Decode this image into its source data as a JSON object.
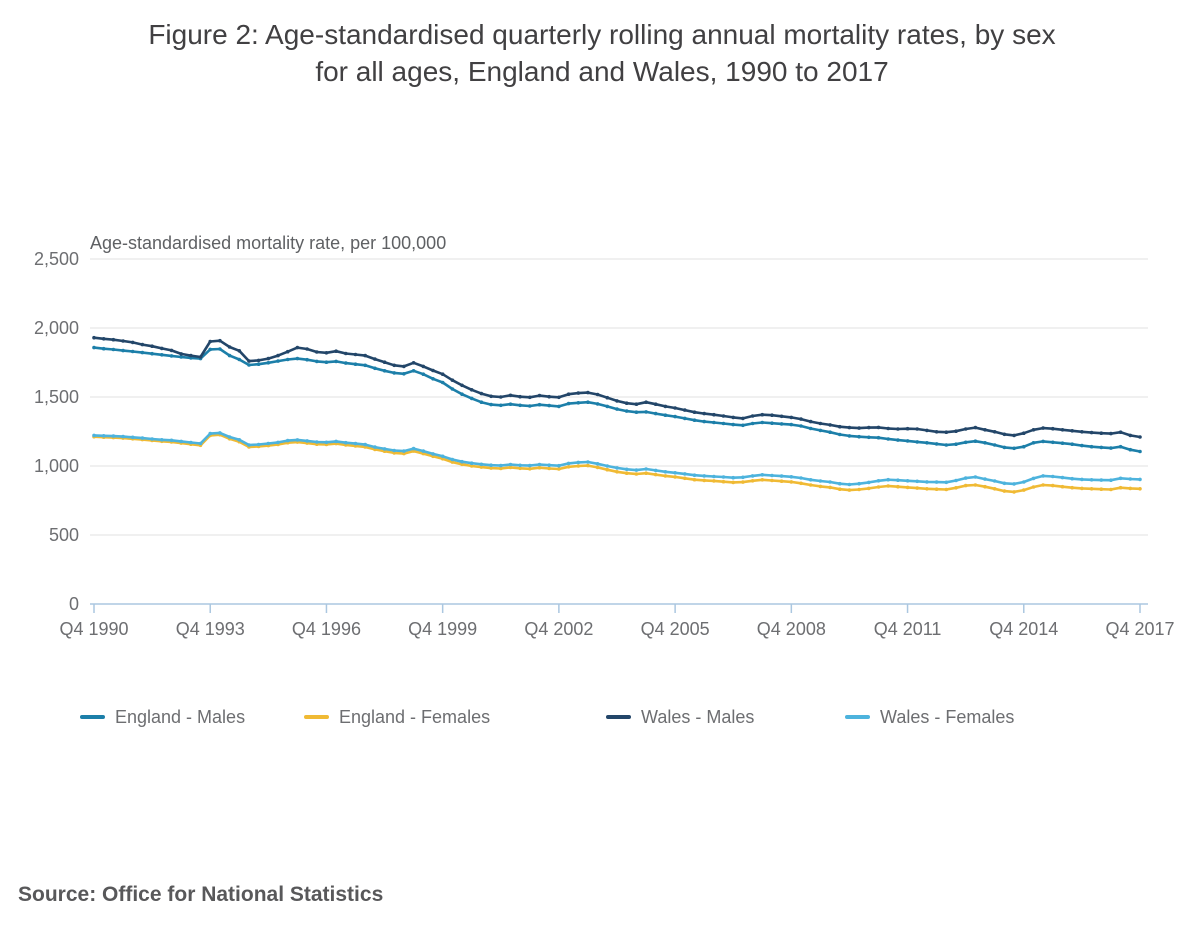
{
  "title": {
    "line1": "Figure 2: Age-standardised quarterly rolling annual mortality rates, by sex",
    "line2": "for all ages, England and Wales, 1990 to 2017"
  },
  "source": "Source: Office for National Statistics",
  "chart_data": {
    "type": "line",
    "title": "Figure 2: Age-standardised quarterly rolling annual mortality rates, by sex for all ages, England and Wales, 1990 to 2017",
    "ylabel": "Age-standardised mortality rate, per 100,000",
    "xlabel": "",
    "x_unit": "quarterly rolling annual periods, Q4 1990 to Q4 2017",
    "x_tick_labels": [
      "Q4 1990",
      "Q4 1993",
      "Q4 1996",
      "Q4 1999",
      "Q4 2002",
      "Q4 2005",
      "Q4 2008",
      "Q4 2011",
      "Q4 2014",
      "Q4 2017"
    ],
    "x_tick_every_n_points": 12,
    "y_ticks": [
      0,
      500,
      1000,
      1500,
      2000,
      2500
    ],
    "y_tick_labels": [
      "0",
      "500",
      "1,000",
      "1,500",
      "2,000",
      "2,500"
    ],
    "ylim": [
      0,
      2500
    ],
    "grid": true,
    "legend_position": "bottom",
    "axis_color": "#abc7e0",
    "grid_color": "#e0e0e0",
    "series": [
      {
        "name": "England - Males",
        "color": "#1c7fa9",
        "values": [
          1858,
          1850,
          1844,
          1836,
          1830,
          1822,
          1814,
          1806,
          1798,
          1790,
          1783,
          1778,
          1845,
          1848,
          1800,
          1772,
          1732,
          1738,
          1748,
          1760,
          1772,
          1778,
          1770,
          1758,
          1752,
          1758,
          1746,
          1738,
          1730,
          1708,
          1690,
          1675,
          1668,
          1690,
          1665,
          1632,
          1605,
          1558,
          1520,
          1490,
          1462,
          1445,
          1440,
          1448,
          1440,
          1435,
          1444,
          1438,
          1432,
          1452,
          1458,
          1462,
          1450,
          1432,
          1412,
          1398,
          1390,
          1392,
          1380,
          1368,
          1358,
          1345,
          1332,
          1322,
          1315,
          1308,
          1300,
          1295,
          1308,
          1315,
          1310,
          1305,
          1300,
          1290,
          1272,
          1258,
          1245,
          1228,
          1218,
          1212,
          1208,
          1205,
          1196,
          1188,
          1182,
          1175,
          1168,
          1160,
          1152,
          1158,
          1172,
          1180,
          1168,
          1152,
          1135,
          1128,
          1140,
          1168,
          1178,
          1172,
          1165,
          1158,
          1148,
          1140,
          1135,
          1130,
          1140,
          1118,
          1105
        ]
      },
      {
        "name": "England - Females",
        "color": "#f0ba34",
        "values": [
          1212,
          1209,
          1206,
          1202,
          1197,
          1191,
          1185,
          1179,
          1174,
          1166,
          1158,
          1150,
          1222,
          1227,
          1197,
          1176,
          1138,
          1141,
          1148,
          1156,
          1169,
          1173,
          1166,
          1158,
          1156,
          1162,
          1152,
          1145,
          1138,
          1120,
          1107,
          1095,
          1090,
          1108,
          1090,
          1070,
          1052,
          1028,
          1012,
          1000,
          992,
          985,
          982,
          990,
          983,
          980,
          988,
          982,
          978,
          994,
          1000,
          1003,
          990,
          973,
          958,
          948,
          942,
          948,
          938,
          928,
          921,
          911,
          901,
          896,
          892,
          886,
          881,
          883,
          893,
          900,
          895,
          890,
          885,
          875,
          862,
          852,
          845,
          832,
          825,
          830,
          838,
          848,
          855,
          850,
          845,
          840,
          835,
          832,
          830,
          842,
          858,
          862,
          850,
          835,
          818,
          812,
          825,
          848,
          862,
          858,
          850,
          843,
          838,
          835,
          832,
          830,
          843,
          838,
          835
        ]
      },
      {
        "name": "Wales - Males",
        "color": "#234669",
        "values": [
          1930,
          1922,
          1915,
          1906,
          1896,
          1880,
          1868,
          1852,
          1838,
          1812,
          1800,
          1790,
          1902,
          1908,
          1862,
          1835,
          1760,
          1765,
          1778,
          1800,
          1828,
          1858,
          1848,
          1826,
          1820,
          1832,
          1815,
          1808,
          1800,
          1775,
          1752,
          1730,
          1722,
          1748,
          1722,
          1692,
          1665,
          1622,
          1585,
          1552,
          1525,
          1505,
          1500,
          1512,
          1502,
          1498,
          1510,
          1502,
          1498,
          1520,
          1528,
          1532,
          1518,
          1495,
          1472,
          1455,
          1448,
          1462,
          1448,
          1432,
          1420,
          1405,
          1390,
          1380,
          1372,
          1362,
          1352,
          1345,
          1362,
          1372,
          1368,
          1360,
          1352,
          1340,
          1322,
          1308,
          1298,
          1285,
          1278,
          1275,
          1278,
          1280,
          1272,
          1268,
          1270,
          1268,
          1258,
          1248,
          1245,
          1252,
          1268,
          1278,
          1262,
          1248,
          1230,
          1222,
          1238,
          1262,
          1275,
          1270,
          1262,
          1255,
          1248,
          1242,
          1238,
          1235,
          1245,
          1222,
          1210
        ]
      },
      {
        "name": "Wales - Females",
        "color": "#4db3dd",
        "values": [
          1222,
          1219,
          1217,
          1213,
          1208,
          1202,
          1196,
          1190,
          1186,
          1178,
          1170,
          1163,
          1235,
          1240,
          1210,
          1190,
          1152,
          1156,
          1163,
          1171,
          1184,
          1189,
          1182,
          1174,
          1172,
          1178,
          1169,
          1162,
          1155,
          1137,
          1124,
          1112,
          1108,
          1126,
          1108,
          1088,
          1070,
          1047,
          1031,
          1020,
          1012,
          1006,
          1003,
          1011,
          1005,
          1003,
          1011,
          1006,
          1002,
          1019,
          1026,
          1029,
          1016,
          1000,
          986,
          976,
          970,
          978,
          968,
          958,
          951,
          943,
          933,
          928,
          924,
          920,
          915,
          918,
          928,
          936,
          931,
          927,
          922,
          913,
          900,
          891,
          884,
          872,
          866,
          872,
          881,
          893,
          901,
          897,
          893,
          889,
          885,
          883,
          882,
          895,
          912,
          920,
          905,
          891,
          875,
          870,
          884,
          910,
          928,
          924,
          916,
          908,
          903,
          900,
          898,
          897,
          911,
          906,
          903
        ]
      }
    ]
  }
}
